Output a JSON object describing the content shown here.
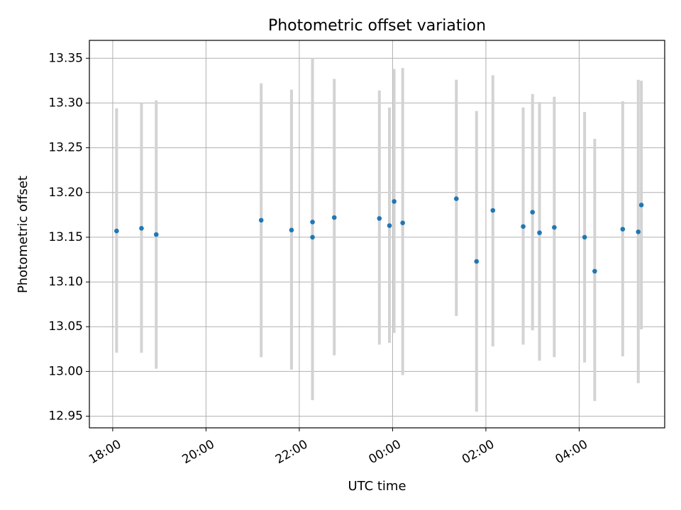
{
  "chart_data": {
    "type": "scatter",
    "title": "Photometric offset variation",
    "xlabel": "UTC time",
    "ylabel": "Photometric offset",
    "x_ticks": [
      "18:00",
      "20:00",
      "22:00",
      "00:00",
      "02:00",
      "04:00"
    ],
    "y_ticks": [
      "12.95",
      "13.00",
      "13.05",
      "13.10",
      "13.15",
      "13.20",
      "13.25",
      "13.30",
      "13.35"
    ],
    "xlim": [
      "17:30",
      "05:50"
    ],
    "ylim": [
      12.937,
      13.37
    ],
    "grid": true,
    "colors": {
      "point": "#1f77b4",
      "errorbar": "#d3d3d3",
      "grid": "#b0b0b0"
    },
    "points": [
      {
        "t": "18:05",
        "y": 13.157,
        "ylo": 13.021,
        "yhi": 13.294
      },
      {
        "t": "18:37",
        "y": 13.16,
        "ylo": 13.021,
        "yhi": 13.3
      },
      {
        "t": "18:56",
        "y": 13.153,
        "ylo": 13.003,
        "yhi": 13.303
      },
      {
        "t": "21:11",
        "y": 13.169,
        "ylo": 13.016,
        "yhi": 13.322
      },
      {
        "t": "21:50",
        "y": 13.158,
        "ylo": 13.002,
        "yhi": 13.315
      },
      {
        "t": "22:17",
        "y": 13.15,
        "ylo": 12.968,
        "yhi": 13.35
      },
      {
        "t": "22:17",
        "y": 13.167,
        "ylo": 12.968,
        "yhi": 13.35
      },
      {
        "t": "22:45",
        "y": 13.172,
        "ylo": 13.018,
        "yhi": 13.327
      },
      {
        "t": "23:43",
        "y": 13.171,
        "ylo": 13.03,
        "yhi": 13.314
      },
      {
        "t": "23:56",
        "y": 13.163,
        "ylo": 13.032,
        "yhi": 13.295
      },
      {
        "t": "00:02",
        "y": 13.19,
        "ylo": 13.043,
        "yhi": 13.338
      },
      {
        "t": "00:13",
        "y": 13.166,
        "ylo": 12.996,
        "yhi": 13.339
      },
      {
        "t": "01:22",
        "y": 13.193,
        "ylo": 13.062,
        "yhi": 13.326
      },
      {
        "t": "01:48",
        "y": 13.123,
        "ylo": 12.955,
        "yhi": 13.291
      },
      {
        "t": "02:09",
        "y": 13.18,
        "ylo": 13.028,
        "yhi": 13.331
      },
      {
        "t": "02:48",
        "y": 13.162,
        "ylo": 13.03,
        "yhi": 13.295
      },
      {
        "t": "03:00",
        "y": 13.178,
        "ylo": 13.046,
        "yhi": 13.31
      },
      {
        "t": "03:09",
        "y": 13.155,
        "ylo": 13.012,
        "yhi": 13.301
      },
      {
        "t": "03:28",
        "y": 13.161,
        "ylo": 13.016,
        "yhi": 13.307
      },
      {
        "t": "04:07",
        "y": 13.15,
        "ylo": 13.01,
        "yhi": 13.29
      },
      {
        "t": "04:20",
        "y": 13.112,
        "ylo": 12.967,
        "yhi": 13.26
      },
      {
        "t": "04:56",
        "y": 13.159,
        "ylo": 13.017,
        "yhi": 13.302
      },
      {
        "t": "05:16",
        "y": 13.156,
        "ylo": 12.987,
        "yhi": 13.326
      },
      {
        "t": "05:20",
        "y": 13.186,
        "ylo": 13.047,
        "yhi": 13.325
      }
    ]
  }
}
